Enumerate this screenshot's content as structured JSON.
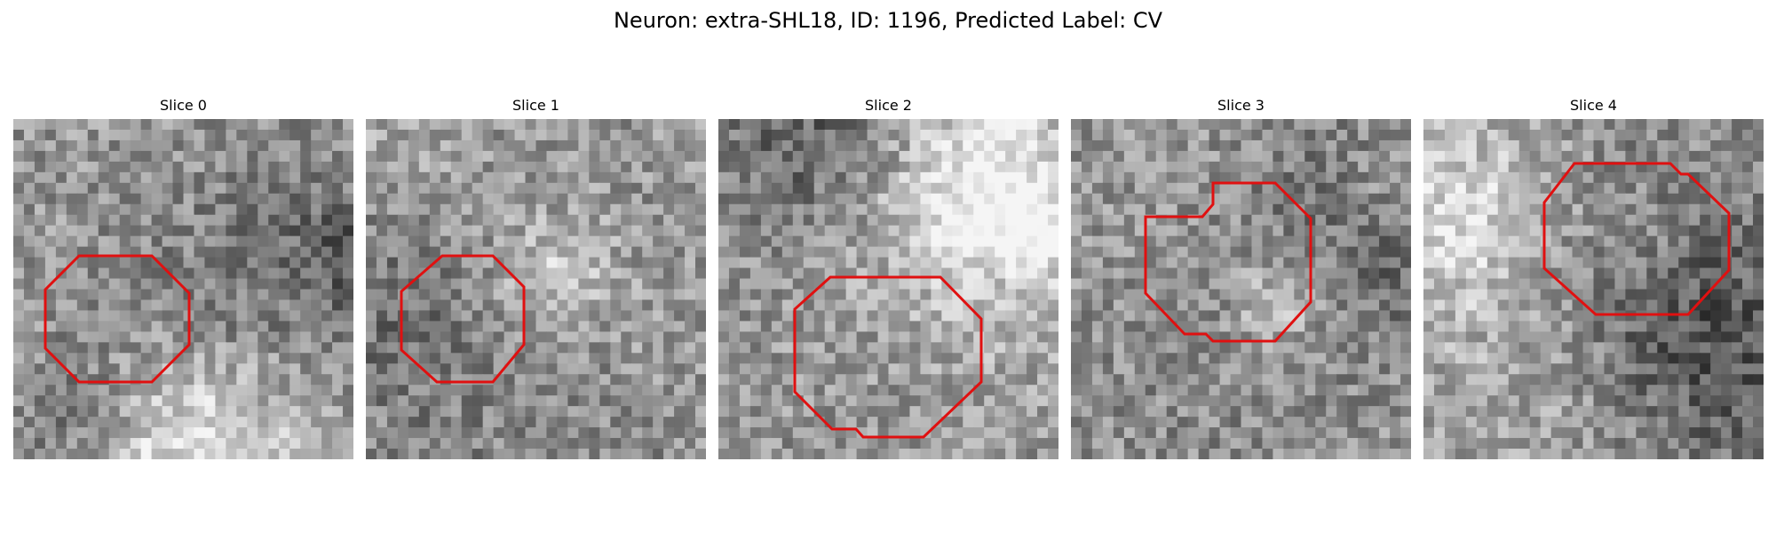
{
  "figure": {
    "title": "Neuron: extra-SHL18, ID: 1196, Predicted Label: CV"
  },
  "colors": {
    "outline": "#e01010",
    "colormap": "grayscale"
  },
  "panels": [
    {
      "title": "Slice 0",
      "seed": 11,
      "outline_icon": "octagon-roi"
    },
    {
      "title": "Slice 1",
      "seed": 23,
      "outline_icon": "octagon-roi"
    },
    {
      "title": "Slice 2",
      "seed": 37,
      "outline_icon": "octagon-roi"
    },
    {
      "title": "Slice 3",
      "seed": 51,
      "outline_icon": "octagon-roi"
    },
    {
      "title": "Slice 4",
      "seed": 67,
      "outline_icon": "octagon-roi"
    }
  ]
}
